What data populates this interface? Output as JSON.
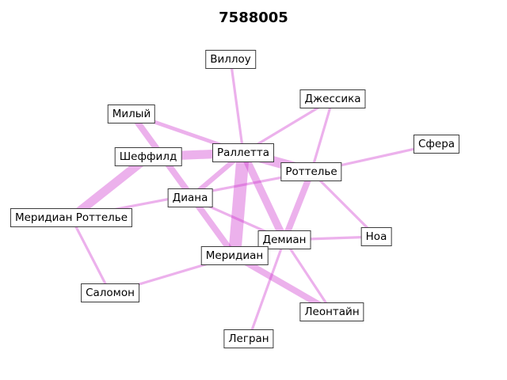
{
  "title": "7588005",
  "edge_color": "#cc33cc",
  "nodes": [
    {
      "id": "villou",
      "label": "Виллоу"
    },
    {
      "id": "jessica",
      "label": "Джессика"
    },
    {
      "id": "milyi",
      "label": "Милый"
    },
    {
      "id": "sfera",
      "label": "Сфера"
    },
    {
      "id": "sheffild",
      "label": "Шеффилд"
    },
    {
      "id": "ralletta",
      "label": "Раллетта"
    },
    {
      "id": "rottele",
      "label": "Роттелье"
    },
    {
      "id": "diana",
      "label": "Диана"
    },
    {
      "id": "meridian_rottele",
      "label": "Меридиан Роттелье"
    },
    {
      "id": "noa",
      "label": "Ноа"
    },
    {
      "id": "demian",
      "label": "Демиан"
    },
    {
      "id": "meridian",
      "label": "Меридиан"
    },
    {
      "id": "salomon",
      "label": "Саломон"
    },
    {
      "id": "leontain",
      "label": "Леонтайн"
    },
    {
      "id": "legran",
      "label": "Легран"
    }
  ],
  "edges": [
    {
      "source": "ralletta",
      "target": "meridian",
      "weight": 10
    },
    {
      "source": "ralletta",
      "target": "rottele",
      "weight": 8
    },
    {
      "source": "sheffild",
      "target": "ralletta",
      "weight": 7
    },
    {
      "source": "sheffild",
      "target": "meridian_rottele",
      "weight": 7
    },
    {
      "source": "ralletta",
      "target": "demian",
      "weight": 6
    },
    {
      "source": "milyi",
      "target": "meridian",
      "weight": 5
    },
    {
      "source": "rottele",
      "target": "demian",
      "weight": 5
    },
    {
      "source": "meridian",
      "target": "leontain",
      "weight": 5
    },
    {
      "source": "ralletta",
      "target": "diana",
      "weight": 4
    },
    {
      "source": "milyi",
      "target": "ralletta",
      "weight": 3
    },
    {
      "source": "villou",
      "target": "ralletta",
      "weight": 2
    },
    {
      "source": "jessica",
      "target": "ralletta",
      "weight": 2
    },
    {
      "source": "jessica",
      "target": "rottele",
      "weight": 2
    },
    {
      "source": "sfera",
      "target": "rottele",
      "weight": 2
    },
    {
      "source": "rottele",
      "target": "noa",
      "weight": 2
    },
    {
      "source": "meridian_rottele",
      "target": "rottele",
      "weight": 2
    },
    {
      "source": "meridian_rottele",
      "target": "salomon",
      "weight": 2
    },
    {
      "source": "diana",
      "target": "demian",
      "weight": 2
    },
    {
      "source": "demian",
      "target": "noa",
      "weight": 2
    },
    {
      "source": "demian",
      "target": "leontain",
      "weight": 2
    },
    {
      "source": "demian",
      "target": "legran",
      "weight": 2
    },
    {
      "source": "meridian",
      "target": "salomon",
      "weight": 2
    }
  ]
}
